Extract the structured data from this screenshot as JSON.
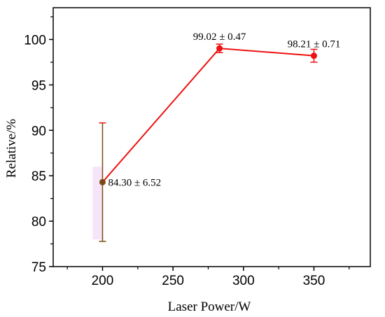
{
  "chart_data": {
    "type": "line",
    "xlabel": "Laser Power/W",
    "ylabel": "Relative/%",
    "xlim": [
      165,
      390
    ],
    "ylim": [
      75,
      103.5
    ],
    "x_ticks": [
      200,
      250,
      300,
      350
    ],
    "y_ticks": [
      75,
      80,
      85,
      90,
      95,
      100
    ],
    "grid": false,
    "series": [
      {
        "color": "#ee1111",
        "points": [
          {
            "x": 200,
            "y": 84.3,
            "err_low": 6.52,
            "err_high": 6.52,
            "label": "84.30 ± 6.52",
            "marker_color": "#7a4a10",
            "error_color": "#7a4a10"
          },
          {
            "x": 283,
            "y": 99.02,
            "err_low": 0.47,
            "err_high": 0.47,
            "label": "99.02 ± 0.47",
            "marker_color": "#ee1111",
            "error_color": "#ee1111"
          },
          {
            "x": 350,
            "y": 98.21,
            "err_low": 0.71,
            "err_high": 0.71,
            "label": "98.21 ± 0.71",
            "marker_color": "#ee1111",
            "error_color": "#ee1111"
          }
        ]
      }
    ],
    "highlight_band": {
      "x_from": 193,
      "x_to": 200,
      "y_from": 78,
      "y_to": 86,
      "color": "#f6e4f8"
    },
    "error_cap_color": "#ee1111"
  }
}
